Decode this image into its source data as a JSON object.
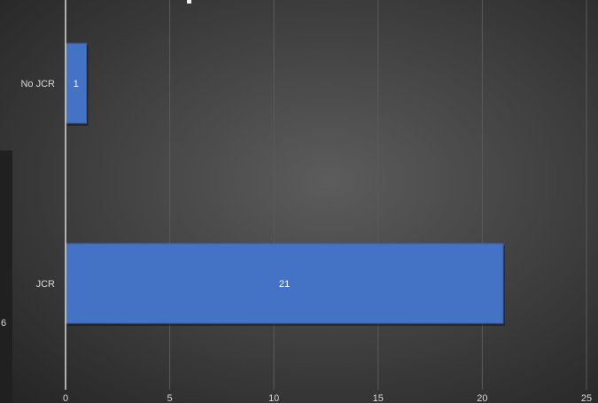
{
  "chart_data": {
    "type": "bar",
    "orientation": "horizontal",
    "categories": [
      "No JCR",
      "JCR"
    ],
    "values": [
      1,
      21
    ],
    "data_labels": [
      "1",
      "21"
    ],
    "xlim": [
      0,
      25
    ],
    "x_ticks": [
      0,
      5,
      10,
      15,
      20,
      25
    ],
    "x_tick_labels": [
      "0",
      "5",
      "10",
      "15",
      "20",
      "25"
    ],
    "grid": "vertical",
    "legend": "none",
    "colors": {
      "bar": "#4472c4",
      "bar_stroke": "#3a62ac",
      "background_center": "#5c5c5c",
      "background_edge": "#262626",
      "gridline": "#5a5a5a",
      "axis_line": "#d9d9d9",
      "text": "#d9d9d9",
      "data_label_text": "#ffffff"
    }
  },
  "partial_text": {
    "left_edge_fragment": "6"
  }
}
